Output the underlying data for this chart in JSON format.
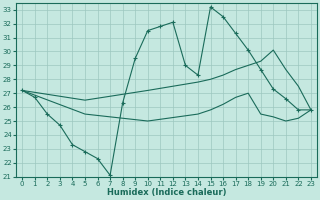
{
  "xlabel": "Humidex (Indice chaleur)",
  "bg_color": "#c5e8e0",
  "grid_color": "#9dc8c0",
  "line_color": "#1a6b5a",
  "ylim": [
    21,
    33.5
  ],
  "xlim": [
    -0.5,
    23.5
  ],
  "yticks": [
    21,
    22,
    23,
    24,
    25,
    26,
    27,
    28,
    29,
    30,
    31,
    32,
    33
  ],
  "xticks": [
    0,
    1,
    2,
    3,
    4,
    5,
    6,
    7,
    8,
    9,
    10,
    11,
    12,
    13,
    14,
    15,
    16,
    17,
    18,
    19,
    20,
    21,
    22,
    23
  ],
  "line1_x": [
    0,
    1,
    2,
    3,
    4,
    5,
    6,
    7,
    8,
    9,
    10,
    11,
    12,
    13,
    14,
    15,
    16,
    17,
    18,
    19,
    20,
    21,
    22,
    23
  ],
  "line1_y": [
    27.2,
    26.7,
    25.5,
    24.7,
    23.3,
    22.8,
    22.3,
    21.1,
    26.3,
    29.5,
    31.5,
    31.8,
    32.1,
    29.0,
    28.3,
    33.2,
    32.5,
    31.3,
    30.1,
    28.7,
    27.3,
    26.6,
    25.8,
    25.8
  ],
  "line2_x": [
    0,
    5,
    10,
    14,
    15,
    16,
    17,
    18,
    19,
    20,
    21,
    22,
    23
  ],
  "line2_y": [
    27.2,
    26.5,
    27.2,
    27.8,
    28.0,
    28.3,
    28.7,
    29.0,
    29.3,
    30.1,
    28.7,
    27.5,
    25.8
  ],
  "line3_x": [
    0,
    5,
    10,
    14,
    15,
    16,
    17,
    18,
    19,
    20,
    21,
    22,
    23
  ],
  "line3_y": [
    27.2,
    25.5,
    25.0,
    25.5,
    25.8,
    26.2,
    26.7,
    27.0,
    25.5,
    25.3,
    25.0,
    25.2,
    25.8
  ]
}
